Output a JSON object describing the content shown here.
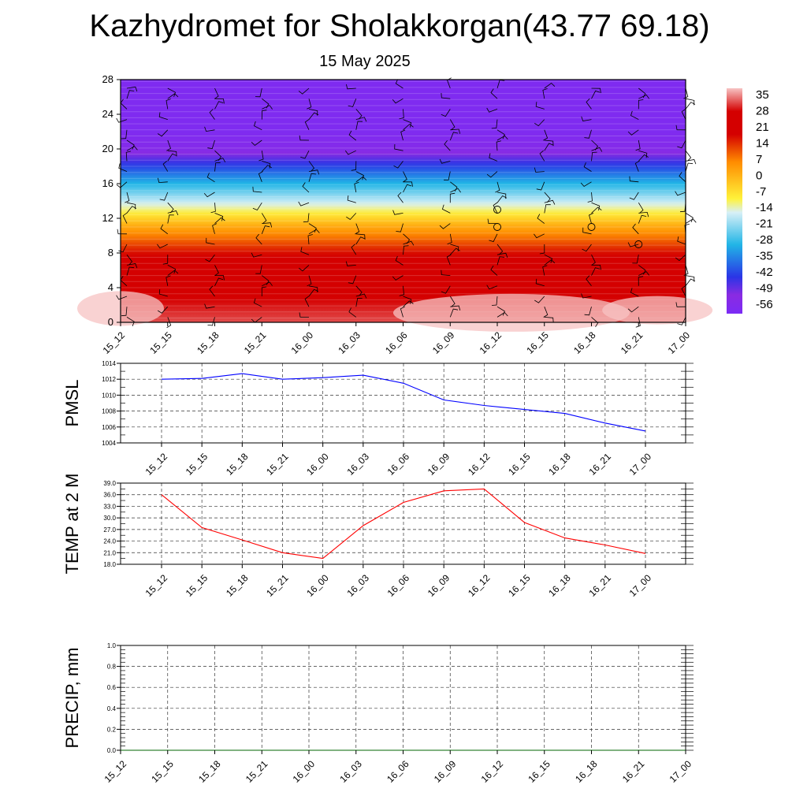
{
  "title": "Kazhydromet for Sholakkorgan(43.77 69.18)",
  "subtitle": "15 May 2025",
  "chart_data": [
    {
      "type": "heatmap",
      "panel": "meteogram-temperature-profile",
      "x_ticks": [
        "15_12",
        "15_15",
        "15_18",
        "15_21",
        "16_00",
        "16_03",
        "16_06",
        "16_09",
        "16_12",
        "16_15",
        "16_18",
        "16_21",
        "17_00"
      ],
      "y_ticks": [
        0,
        4,
        8,
        12,
        16,
        20,
        24,
        28
      ],
      "ylim": [
        0,
        28
      ],
      "colorbar_labels": [
        "35",
        "28",
        "21",
        "14",
        "7",
        "0",
        "-7",
        "-14",
        "-21",
        "-28",
        "-35",
        "-42",
        "-49",
        "-56"
      ],
      "colorbar_range": [
        -60,
        38
      ],
      "colors": {
        "lowest": "#7b2bf5",
        "violet": "#8a2be2",
        "blue": "#2a35e6",
        "cyan": "#21b5e6",
        "pale": "#d8f0f7",
        "yellow": "#fff23a",
        "orange": "#ff8c00",
        "red": "#d40000",
        "pink": "#f7c3c3"
      },
      "level_profile": [
        {
          "level": 0,
          "temp": 32
        },
        {
          "level": 4,
          "temp": 26
        },
        {
          "level": 8,
          "temp": 17
        },
        {
          "level": 11,
          "temp": 2
        },
        {
          "level": 13,
          "temp": -12
        },
        {
          "level": 14,
          "temp": -18
        },
        {
          "level": 17,
          "temp": -36
        },
        {
          "level": 20,
          "temp": -55
        },
        {
          "level": 22,
          "temp": -58
        },
        {
          "level": 28,
          "temp": -58
        }
      ],
      "calm_markers": [
        {
          "x": "16_12",
          "level": 13
        },
        {
          "x": "16_12",
          "level": 11
        },
        {
          "x": "16_18",
          "level": 11
        },
        {
          "x": "16_21",
          "level": 9
        }
      ],
      "grid": false
    },
    {
      "type": "line",
      "ylabel": "PMSL",
      "x": [
        "15_12",
        "15_15",
        "15_18",
        "15_21",
        "16_00",
        "16_03",
        "16_06",
        "16_09",
        "16_12",
        "16_15",
        "16_18",
        "16_21",
        "17_00"
      ],
      "values": [
        1012.0,
        1012.1,
        1012.7,
        1012.0,
        1012.2,
        1012.5,
        1011.5,
        1009.4,
        1008.7,
        1008.2,
        1007.7,
        1006.5,
        1005.5
      ],
      "y_ticks": [
        "1004",
        "1006",
        "1008",
        "1010",
        "1012",
        "1014"
      ],
      "ylim": [
        1004,
        1014
      ],
      "color": "#0000ff",
      "grid": true
    },
    {
      "type": "line",
      "ylabel": "TEMP at 2 M",
      "x": [
        "15_12",
        "15_15",
        "15_18",
        "15_21",
        "16_00",
        "16_03",
        "16_06",
        "16_09",
        "16_12",
        "16_15",
        "16_18",
        "16_21",
        "17_00"
      ],
      "values": [
        36.0,
        27.5,
        24.3,
        21.0,
        19.5,
        28.0,
        34.0,
        37.0,
        37.5,
        28.8,
        24.8,
        23.0,
        20.8
      ],
      "y_ticks": [
        "18.0",
        "21.0",
        "24.0",
        "27.0",
        "30.0",
        "33.0",
        "36.0",
        "39.0"
      ],
      "ylim": [
        18,
        39
      ],
      "color": "#ff0000",
      "grid": true
    },
    {
      "type": "line",
      "ylabel": "PRECIP, mm",
      "x_ticks": [
        "15_12",
        "15_15",
        "15_18",
        "15_21",
        "16_00",
        "16_03",
        "16_06",
        "16_09",
        "16_12",
        "16_15",
        "16_18",
        "16_21",
        "17_00"
      ],
      "x": [
        0,
        1,
        2,
        3,
        4,
        5,
        6,
        7,
        8,
        9,
        10,
        11,
        12
      ],
      "values": [
        0,
        0,
        0,
        0,
        0,
        0,
        0,
        0,
        0,
        0,
        0,
        0,
        0
      ],
      "y_ticks": [
        "0.0",
        "0.2",
        "0.4",
        "0.6",
        "0.8",
        "1.0"
      ],
      "ylim": [
        0,
        1
      ],
      "color": "#006400",
      "grid": true
    }
  ]
}
